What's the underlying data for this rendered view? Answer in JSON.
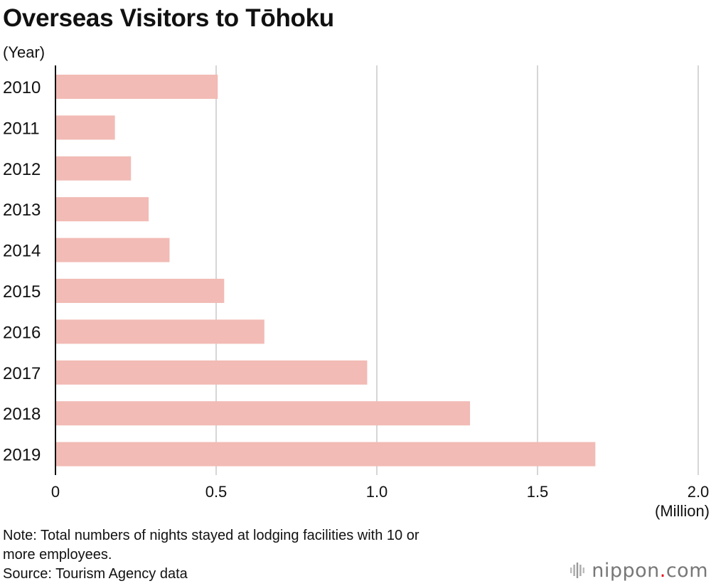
{
  "title": "Overseas Visitors to Tōhoku",
  "y_unit": "(Year)",
  "x_unit": "(Million)",
  "note_line1": "Note: Total numbers of nights stayed at lodging facilities with 10 or",
  "note_line2": "more employees.",
  "source": "Source: Tourism Agency data",
  "logo": {
    "word": "nippon",
    "dot": ".",
    "tld": "com",
    "icon": "sound-wave-icon"
  },
  "colors": {
    "bar": "#f2bbb5",
    "grid": "#c8c8c8",
    "axis": "#111111",
    "logo_dot": "#e60012"
  },
  "chart_data": {
    "type": "bar",
    "orientation": "horizontal",
    "title": "Overseas Visitors to Tōhoku",
    "ylabel": "(Year)",
    "xlabel": "(Million)",
    "categories": [
      "2010",
      "2011",
      "2012",
      "2013",
      "2014",
      "2015",
      "2016",
      "2017",
      "2018",
      "2019"
    ],
    "values": [
      0.505,
      0.185,
      0.235,
      0.29,
      0.355,
      0.525,
      0.65,
      0.97,
      1.29,
      1.68
    ],
    "xlim": [
      0,
      2.0
    ],
    "xticks": [
      "0",
      "0.5",
      "1.0",
      "1.5",
      "2.0"
    ],
    "xtick_values": [
      0,
      0.5,
      1.0,
      1.5,
      2.0
    ],
    "grid": true,
    "legend": "none"
  }
}
